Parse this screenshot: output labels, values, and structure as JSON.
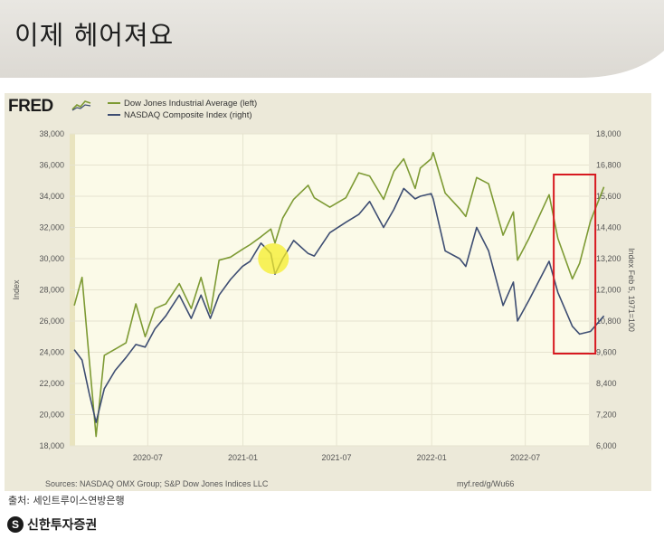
{
  "slide": {
    "title": "이제 헤어져요",
    "caption_source": "출처: 세인트루이스연방은행",
    "brand_name": "신한투자증권",
    "brand_mark": "S"
  },
  "colors": {
    "dow": "#7d9a33",
    "nasdaq": "#3d4d72",
    "plot_bg": "#fbfae8",
    "panel_bg": "#ece9d9",
    "highlight_box": "#d71920",
    "highlight_circle": "#f5ee2a"
  },
  "fred": {
    "logo_text": "FRED",
    "sources": "Sources: NASDAQ OMX Group; S&P Dow Jones Indices LLC",
    "url": "myf.red/g/Wu66"
  },
  "chart_data": {
    "type": "line",
    "title": "",
    "ylabel_left": "Index",
    "ylabel_right": "Index Feb 5, 1971=100",
    "y_left_range": [
      18000,
      38000
    ],
    "y_left_ticks": [
      "18,000",
      "20,000",
      "22,000",
      "24,000",
      "26,000",
      "28,000",
      "30,000",
      "32,000",
      "34,000",
      "36,000",
      "38,000"
    ],
    "y_right_range": [
      6000,
      18000
    ],
    "y_right_ticks": [
      "6,000",
      "7,200",
      "8,400",
      "9,600",
      "10,800",
      "12,000",
      "13,200",
      "14,400",
      "15,600",
      "16,800",
      "18,000"
    ],
    "x_range": [
      "2020-02",
      "2022-11"
    ],
    "x_ticks": [
      {
        "date": "2020-07",
        "label": "2020-07"
      },
      {
        "date": "2021-01",
        "label": "2021-01"
      },
      {
        "date": "2021-07",
        "label": "2021-07"
      },
      {
        "date": "2022-01",
        "label": "2022-01"
      },
      {
        "date": "2022-07",
        "label": "2022-07"
      }
    ],
    "grid": true,
    "legend_position": "top-left",
    "series": [
      {
        "name": "Dow Jones Industrial Average (left)",
        "axis": "left",
        "x": [
          "2020-02-10",
          "2020-02-25",
          "2020-03-10",
          "2020-03-23",
          "2020-04-08",
          "2020-04-29",
          "2020-05-20",
          "2020-06-08",
          "2020-06-26",
          "2020-07-15",
          "2020-08-05",
          "2020-08-31",
          "2020-09-23",
          "2020-10-12",
          "2020-10-30",
          "2020-11-16",
          "2020-12-08",
          "2020-12-31",
          "2021-01-15",
          "2021-02-05",
          "2021-02-24",
          "2021-03-04",
          "2021-03-19",
          "2021-04-09",
          "2021-05-07",
          "2021-05-19",
          "2021-06-18",
          "2021-07-19",
          "2021-08-13",
          "2021-09-03",
          "2021-09-30",
          "2021-10-20",
          "2021-11-08",
          "2021-11-30",
          "2021-12-10",
          "2021-12-31",
          "2022-01-04",
          "2022-01-27",
          "2022-02-24",
          "2022-03-08",
          "2022-03-29",
          "2022-04-21",
          "2022-05-19",
          "2022-06-08",
          "2022-06-16",
          "2022-07-08",
          "2022-08-16",
          "2022-09-02",
          "2022-09-30",
          "2022-10-14",
          "2022-11-04",
          "2022-11-30"
        ],
        "values": [
          27000,
          28800,
          23500,
          18600,
          23800,
          24200,
          24600,
          27100,
          25000,
          26800,
          27100,
          28400,
          26800,
          28800,
          26500,
          29900,
          30100,
          30600,
          30900,
          31400,
          31900,
          31000,
          32600,
          33800,
          34700,
          33900,
          33300,
          33900,
          35500,
          35300,
          33800,
          35600,
          36400,
          34500,
          35800,
          36400,
          36800,
          34200,
          33200,
          32700,
          35200,
          34800,
          31500,
          33000,
          29900,
          31300,
          34100,
          31300,
          28700,
          29700,
          32400,
          34600
        ]
      },
      {
        "name": "NASDAQ Composite Index (right)",
        "axis": "right",
        "x": [
          "2020-02-10",
          "2020-02-25",
          "2020-03-10",
          "2020-03-23",
          "2020-04-08",
          "2020-04-29",
          "2020-05-20",
          "2020-06-08",
          "2020-06-26",
          "2020-07-15",
          "2020-08-05",
          "2020-08-31",
          "2020-09-23",
          "2020-10-12",
          "2020-10-30",
          "2020-11-16",
          "2020-12-08",
          "2020-12-31",
          "2021-01-15",
          "2021-02-05",
          "2021-02-24",
          "2021-03-04",
          "2021-03-19",
          "2021-04-09",
          "2021-05-07",
          "2021-05-19",
          "2021-06-18",
          "2021-07-19",
          "2021-08-13",
          "2021-09-03",
          "2021-09-30",
          "2021-10-20",
          "2021-11-08",
          "2021-11-30",
          "2021-12-10",
          "2021-12-31",
          "2022-01-04",
          "2022-01-27",
          "2022-02-24",
          "2022-03-08",
          "2022-03-29",
          "2022-04-21",
          "2022-05-19",
          "2022-06-08",
          "2022-06-16",
          "2022-07-08",
          "2022-08-16",
          "2022-09-02",
          "2022-09-30",
          "2022-10-14",
          "2022-11-04",
          "2022-11-30"
        ],
        "values": [
          9700,
          9300,
          8000,
          6900,
          8200,
          8900,
          9400,
          9900,
          9800,
          10500,
          11000,
          11800,
          10900,
          11800,
          10900,
          11800,
          12400,
          12900,
          13100,
          13800,
          13400,
          12600,
          13200,
          13900,
          13400,
          13300,
          14200,
          14600,
          14900,
          15400,
          14400,
          15100,
          15900,
          15500,
          15600,
          15700,
          15500,
          13500,
          13200,
          12900,
          14400,
          13500,
          11400,
          12300,
          10800,
          11600,
          13100,
          11900,
          10600,
          10300,
          10400,
          11000
        ]
      }
    ]
  }
}
